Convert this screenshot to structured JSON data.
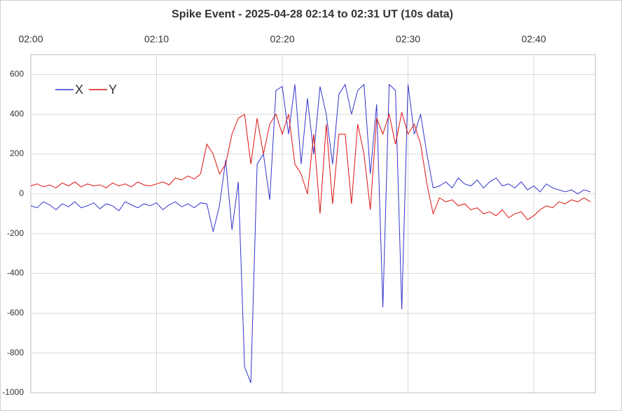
{
  "chart_data": {
    "type": "line",
    "title": "Spike Event - 2025-04-28  02:14 to 02:31 UT (10s data)",
    "categories": [
      "02:00",
      null,
      null,
      null,
      null,
      null,
      null,
      null,
      null,
      null,
      null,
      null,
      null,
      null,
      null,
      null,
      null,
      null,
      null,
      null,
      "02:10",
      null,
      null,
      null,
      null,
      null,
      null,
      null,
      null,
      null,
      null,
      null,
      null,
      null,
      null,
      null,
      null,
      null,
      null,
      null,
      "02:20",
      null,
      null,
      null,
      null,
      null,
      null,
      null,
      null,
      null,
      null,
      null,
      null,
      null,
      null,
      null,
      null,
      null,
      null,
      null,
      "02:30",
      null,
      null,
      null,
      null,
      null,
      null,
      null,
      null,
      null,
      null,
      null,
      null,
      null,
      null,
      null,
      null,
      null,
      null,
      null,
      "02:40",
      null,
      null,
      null,
      null,
      null,
      null,
      null,
      null,
      null
    ],
    "series": [
      {
        "name": "X",
        "color": "#3333cc",
        "values": [
          -60,
          -70,
          -40,
          -55,
          -80,
          -50,
          -65,
          -40,
          -70,
          -60,
          -45,
          -75,
          -50,
          -60,
          -85,
          -40,
          -55,
          -70,
          -50,
          -60,
          -45,
          -80,
          -55,
          -40,
          -65,
          -50,
          -70,
          -45,
          -50,
          -190,
          -60,
          170,
          -180,
          60,
          -870,
          -950,
          150,
          200,
          -30,
          520,
          540,
          300,
          550,
          150,
          480,
          200,
          540,
          400,
          150,
          500,
          550,
          400,
          520,
          550,
          100,
          450,
          -570,
          550,
          520,
          -580,
          550,
          300,
          400,
          200,
          30,
          40,
          60,
          30,
          80,
          50,
          40,
          70,
          30,
          60,
          80,
          40,
          50,
          30,
          60,
          20,
          40,
          10,
          50,
          30,
          20,
          10,
          20,
          0,
          20,
          10
        ]
      },
      {
        "name": "Y",
        "color": "#dd1111",
        "values": [
          40,
          50,
          35,
          45,
          30,
          55,
          40,
          60,
          35,
          50,
          40,
          45,
          30,
          55,
          40,
          50,
          35,
          60,
          45,
          40,
          50,
          60,
          45,
          80,
          70,
          90,
          75,
          100,
          250,
          200,
          100,
          150,
          300,
          380,
          400,
          150,
          380,
          200,
          350,
          400,
          300,
          400,
          150,
          100,
          0,
          300,
          -100,
          350,
          -50,
          300,
          300,
          -50,
          350,
          200,
          -80,
          380,
          300,
          400,
          250,
          410,
          300,
          350,
          250,
          50,
          -100,
          -20,
          -40,
          -30,
          -60,
          -50,
          -80,
          -70,
          -100,
          -90,
          -110,
          -80,
          -120,
          -100,
          -90,
          -130,
          -110,
          -80,
          -60,
          -70,
          -40,
          -50,
          -30,
          -40,
          -20,
          -40
        ]
      }
    ],
    "ylim": [
      -1000,
      700
    ],
    "yticks": [
      -1000,
      -800,
      -600,
      -400,
      -200,
      0,
      200,
      400,
      600
    ],
    "grid": true,
    "legend": "top-left"
  }
}
